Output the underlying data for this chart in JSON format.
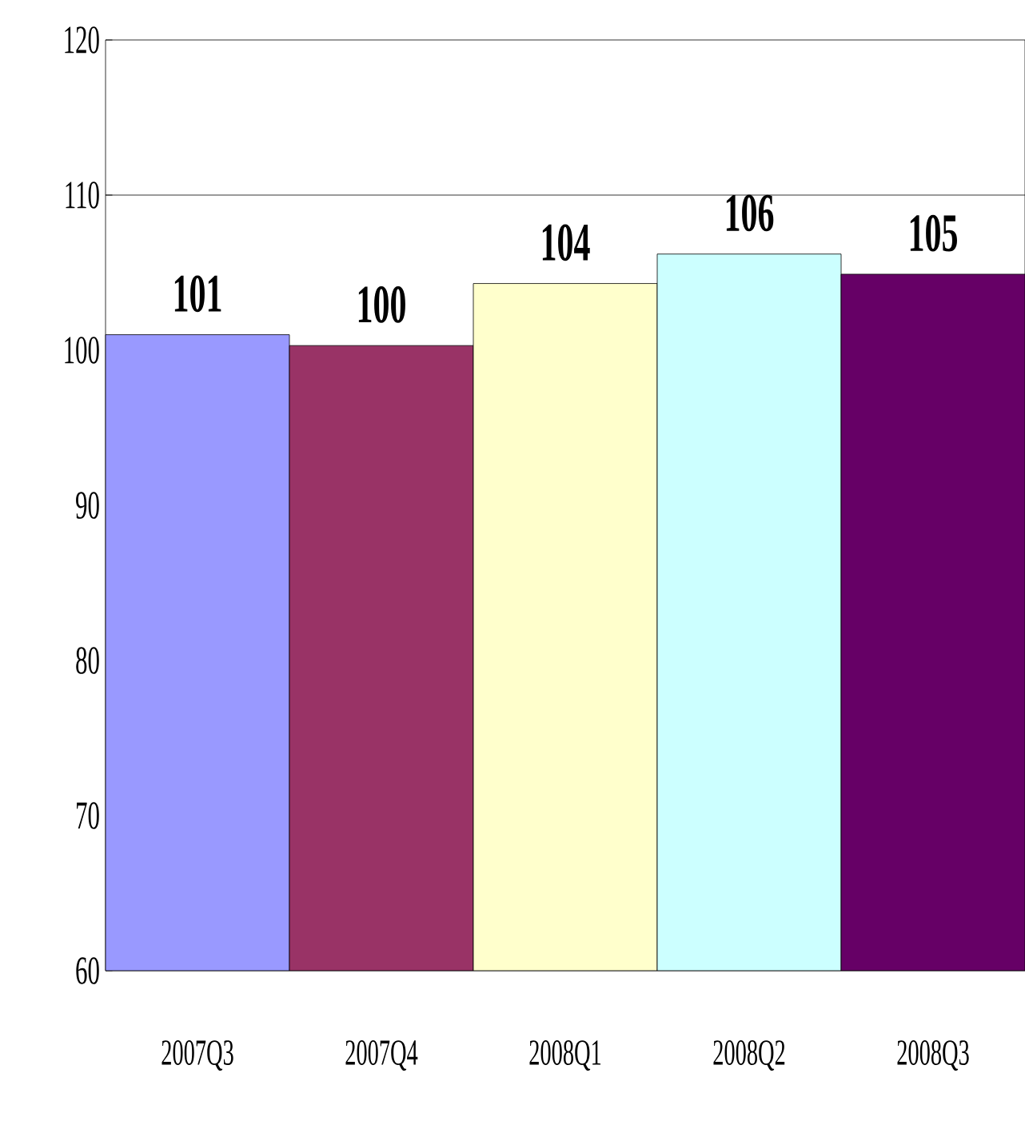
{
  "chart_data": {
    "type": "bar",
    "categories": [
      "2007Q3",
      "2007Q4",
      "2008Q1",
      "2008Q2",
      "2008Q3"
    ],
    "values": [
      101.0,
      100.3,
      104.3,
      106.2,
      104.9
    ],
    "colors": [
      "#9999ff",
      "#993366",
      "#ffffcc",
      "#ccffff",
      "#660066"
    ],
    "value_labels": [
      "101",
      "100",
      "104",
      "106",
      "105"
    ],
    "ylim": [
      60,
      120
    ],
    "yticks": [
      60,
      70,
      80,
      90,
      100,
      110,
      120
    ],
    "ref_lines": [
      {
        "axis": "y",
        "value": 110,
        "color": "#000000"
      }
    ],
    "grid": false
  }
}
